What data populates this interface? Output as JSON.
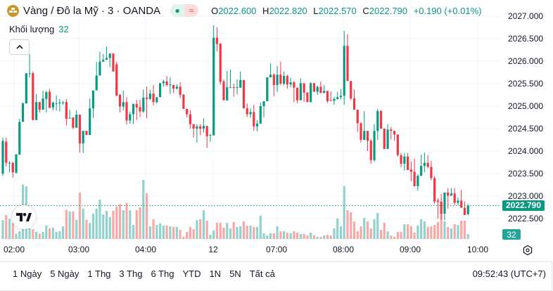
{
  "header": {
    "symbol_title": "Vàng / Đô la Mỹ · 3 · OANDA",
    "market_open_icon": "dot-icon",
    "status_icon": "approx-icon",
    "ohlc": {
      "o_label": "O",
      "o": "2022.600",
      "h_label": "H",
      "h": "2022.820",
      "l_label": "L",
      "l": "2022.570",
      "c_label": "C",
      "c": "2022.790",
      "change": "+0.190 (+0.01%)"
    }
  },
  "volume_legend": {
    "label": "Khối lượng",
    "value": "32"
  },
  "price_axis": {
    "labels": [
      "2027.000",
      "2026.500",
      "2026.000",
      "2025.500",
      "2025.000",
      "2024.500",
      "2024.000",
      "2023.500",
      "2023.000",
      "2022.500"
    ],
    "current_price": "2022.790",
    "current_volume": "32"
  },
  "time_axis": {
    "labels": [
      "02:00",
      "03:00",
      "04:00",
      "12",
      "07:00",
      "08:00",
      "09:00",
      "10:00"
    ]
  },
  "colors": {
    "up": "#089981",
    "down": "#f23645",
    "up_volume": "#92d2cc",
    "down_volume": "#f7a9a7",
    "price_tag": "#089981"
  },
  "bottom_bar": {
    "periods": [
      "1 Ngày",
      "5 Ngày",
      "1 Thg",
      "3 Thg",
      "6 Thg",
      "YTD",
      "1N",
      "5N",
      "Tất cả"
    ],
    "clock": "09:52:43 (UTC+7)"
  },
  "chart_data": {
    "type": "candlestick",
    "interval": "3m",
    "ylim": [
      2022.1,
      2027.3
    ],
    "grid": true,
    "ohlc": [
      [
        2023.5,
        2024.3,
        2023.45,
        2024.23
      ],
      [
        2024.21,
        2024.3,
        2023.66,
        2023.74
      ],
      [
        2023.74,
        2023.78,
        2023.53,
        2023.74
      ],
      [
        2023.74,
        2023.76,
        2023.41,
        2023.53
      ],
      [
        2023.52,
        2023.93,
        2023.5,
        2023.93
      ],
      [
        2023.92,
        2024.72,
        2023.92,
        2024.65
      ],
      [
        2024.65,
        2025.07,
        2024.65,
        2025.07
      ],
      [
        2025.06,
        2025.73,
        2025.06,
        2025.73
      ],
      [
        2025.73,
        2026.16,
        2025.64,
        2025.73
      ],
      [
        2025.73,
        2025.77,
        2024.69,
        2024.69
      ],
      [
        2024.69,
        2025.27,
        2024.69,
        2025.09
      ],
      [
        2025.09,
        2025.09,
        2024.86,
        2024.92
      ],
      [
        2024.92,
        2025.34,
        2024.92,
        2025.17
      ],
      [
        2025.16,
        2025.34,
        2024.86,
        2025.31
      ],
      [
        2025.32,
        2025.38,
        2024.96,
        2024.96
      ],
      [
        2024.97,
        2025.1,
        2024.91,
        2025.08
      ],
      [
        2025.06,
        2025.24,
        2024.9,
        2025.06
      ],
      [
        2025.06,
        2025.16,
        2024.88,
        2025.08
      ],
      [
        2025.08,
        2025.12,
        2025.03,
        2025.08
      ],
      [
        2025.09,
        2025.16,
        2024.57,
        2024.72
      ],
      [
        2024.73,
        2024.92,
        2024.73,
        2024.74
      ],
      [
        2024.75,
        2024.75,
        2024.49,
        2024.52
      ],
      [
        2024.52,
        2024.91,
        2024.52,
        2024.81
      ],
      [
        2024.81,
        2024.81,
        2023.97,
        2024.17
      ],
      [
        2024.17,
        2024.45,
        2023.96,
        2024.45
      ],
      [
        2024.45,
        2024.45,
        2024.36,
        2024.36
      ],
      [
        2024.36,
        2025.17,
        2024.36,
        2024.95
      ],
      [
        2024.95,
        2025.35,
        2024.74,
        2025.35
      ],
      [
        2025.35,
        2025.98,
        2025.35,
        2025.68
      ],
      [
        2025.68,
        2026.21,
        2025.68,
        2025.99
      ],
      [
        2025.99,
        2026.16,
        2025.99,
        2026.03
      ],
      [
        2026.03,
        2026.32,
        2026.03,
        2026.07
      ],
      [
        2026.07,
        2026.17,
        2025.87,
        2026.17
      ],
      [
        2026.17,
        2026.17,
        2025.77,
        2025.77
      ],
      [
        2025.93,
        2025.99,
        2025.23,
        2025.23
      ],
      [
        2025.25,
        2025.27,
        2024.86,
        2024.99
      ],
      [
        2024.99,
        2025.35,
        2024.91,
        2025.09
      ],
      [
        2025.09,
        2025.2,
        2024.59,
        2024.68
      ],
      [
        2024.68,
        2024.88,
        2024.61,
        2024.82
      ],
      [
        2024.82,
        2025.05,
        2024.6,
        2025.05
      ],
      [
        2025.05,
        2025.14,
        2024.69,
        2024.97
      ],
      [
        2024.98,
        2025.14,
        2024.76,
        2024.88
      ],
      [
        2024.88,
        2025.37,
        2024.85,
        2025.19
      ],
      [
        2025.19,
        2025.43,
        2024.73,
        2025.16
      ],
      [
        2025.16,
        2025.37,
        2025.14,
        2025.28
      ],
      [
        2025.28,
        2025.47,
        2025.02,
        2025.09
      ],
      [
        2025.09,
        2025.2,
        2025.06,
        2025.2
      ],
      [
        2025.2,
        2025.51,
        2025.2,
        2025.51
      ],
      [
        2025.51,
        2025.59,
        2025.43,
        2025.55
      ],
      [
        2025.55,
        2025.67,
        2025.44,
        2025.47
      ],
      [
        2025.48,
        2025.64,
        2025.27,
        2025.48
      ],
      [
        2025.47,
        2025.47,
        2025.29,
        2025.39
      ],
      [
        2025.39,
        2025.49,
        2025.37,
        2025.43
      ],
      [
        2025.43,
        2025.53,
        2025.18,
        2025.25
      ],
      [
        2025.26,
        2025.26,
        2024.94,
        2024.94
      ],
      [
        2024.94,
        2024.94,
        2024.75,
        2024.82
      ],
      [
        2024.82,
        2024.91,
        2024.5,
        2024.6
      ],
      [
        2024.6,
        2024.6,
        2024.3,
        2024.5
      ],
      [
        2024.5,
        2024.6,
        2024.19,
        2024.55
      ],
      [
        2024.55,
        2024.6,
        2024.35,
        2024.5
      ],
      [
        2024.5,
        2024.73,
        2024.41,
        2024.56
      ],
      [
        2024.56,
        2024.56,
        2024.07,
        2024.33
      ],
      [
        2024.35,
        2024.38,
        2024.21,
        2024.36
      ],
      [
        2024.35,
        2026.8,
        2024.35,
        2026.52
      ],
      [
        2026.52,
        2026.75,
        2026.22,
        2026.38
      ],
      [
        2026.39,
        2026.39,
        2025.48,
        2025.54
      ],
      [
        2025.55,
        2025.59,
        2025.13,
        2025.13
      ],
      [
        2025.13,
        2025.78,
        2025.13,
        2025.42
      ],
      [
        2025.42,
        2025.81,
        2025.42,
        2025.42
      ],
      [
        2025.42,
        2025.5,
        2025.21,
        2025.41
      ],
      [
        2025.41,
        2025.59,
        2025.26,
        2025.42
      ],
      [
        2025.41,
        2025.77,
        2025.41,
        2025.58
      ],
      [
        2025.58,
        2025.58,
        2024.95,
        2024.95
      ],
      [
        2024.95,
        2025.06,
        2024.76,
        2024.82
      ],
      [
        2024.82,
        2024.95,
        2024.74,
        2024.87
      ],
      [
        2024.87,
        2025.03,
        2024.45,
        2024.55
      ],
      [
        2024.55,
        2024.69,
        2024.44,
        2024.61
      ],
      [
        2024.61,
        2025.08,
        2024.61,
        2025.0
      ],
      [
        2025.0,
        2025.11,
        2024.75,
        2025.11
      ],
      [
        2025.11,
        2025.64,
        2025.11,
        2025.64
      ],
      [
        2025.64,
        2025.95,
        2025.64,
        2025.7
      ],
      [
        2025.7,
        2025.73,
        2025.22,
        2025.47
      ],
      [
        2025.47,
        2025.89,
        2025.32,
        2025.7
      ],
      [
        2025.7,
        2025.99,
        2025.47,
        2025.5
      ],
      [
        2025.5,
        2025.77,
        2025.46,
        2025.67
      ],
      [
        2025.67,
        2025.7,
        2025.39,
        2025.48
      ],
      [
        2025.48,
        2025.63,
        2025.42,
        2025.53
      ],
      [
        2025.53,
        2025.56,
        2025.09,
        2025.41
      ],
      [
        2025.41,
        2025.41,
        2025.06,
        2025.13
      ],
      [
        2025.13,
        2025.62,
        2025.13,
        2025.51
      ],
      [
        2025.51,
        2025.51,
        2025.09,
        2025.3
      ],
      [
        2025.3,
        2025.32,
        2025.09,
        2025.09
      ],
      [
        2025.09,
        2025.53,
        2025.09,
        2025.51
      ],
      [
        2025.51,
        2025.51,
        2025.32,
        2025.32
      ],
      [
        2025.32,
        2025.46,
        2025.25,
        2025.43
      ],
      [
        2025.43,
        2025.55,
        2025.29,
        2025.29
      ],
      [
        2025.29,
        2025.47,
        2025.29,
        2025.34
      ],
      [
        2025.34,
        2025.34,
        2025.07,
        2025.11
      ],
      [
        2025.13,
        2025.33,
        2025.11,
        2025.12
      ],
      [
        2025.12,
        2025.2,
        2025.03,
        2025.16
      ],
      [
        2025.16,
        2025.32,
        2025.14,
        2025.2
      ],
      [
        2025.2,
        2025.38,
        2025.15,
        2025.23
      ],
      [
        2025.23,
        2026.67,
        2025.03,
        2026.34
      ],
      [
        2026.34,
        2026.6,
        2025.56,
        2025.56
      ],
      [
        2025.56,
        2025.56,
        2025.13,
        2025.17
      ],
      [
        2025.17,
        2025.37,
        2024.92,
        2024.92
      ],
      [
        2024.92,
        2024.92,
        2024.43,
        2024.62
      ],
      [
        2024.62,
        2024.65,
        2024.19,
        2024.25
      ],
      [
        2024.25,
        2024.89,
        2024.25,
        2024.45
      ],
      [
        2024.45,
        2024.45,
        2024.0,
        2024.23
      ],
      [
        2024.23,
        2024.27,
        2023.72,
        2023.8
      ],
      [
        2023.8,
        2024.6,
        2023.77,
        2024.45
      ],
      [
        2024.45,
        2024.94,
        2024.25,
        2024.89
      ],
      [
        2024.89,
        2024.91,
        2024.5,
        2024.5
      ],
      [
        2024.5,
        2024.5,
        2024.05,
        2024.05
      ],
      [
        2024.05,
        2024.6,
        2024.05,
        2024.48
      ],
      [
        2024.48,
        2024.54,
        2024.26,
        2024.45
      ],
      [
        2024.45,
        2024.45,
        2024.23,
        2024.37
      ],
      [
        2024.37,
        2024.37,
        2023.88,
        2023.91
      ],
      [
        2023.91,
        2023.96,
        2023.64,
        2023.72
      ],
      [
        2023.72,
        2023.96,
        2023.57,
        2023.88
      ],
      [
        2023.88,
        2023.96,
        2023.58,
        2023.58
      ],
      [
        2023.59,
        2023.77,
        2023.33,
        2023.54
      ],
      [
        2023.54,
        2023.83,
        2023.22,
        2023.22
      ],
      [
        2023.22,
        2023.49,
        2023.12,
        2023.45
      ],
      [
        2023.45,
        2023.92,
        2023.45,
        2023.67
      ],
      [
        2023.67,
        2023.97,
        2023.53,
        2023.74
      ],
      [
        2023.74,
        2023.91,
        2023.62,
        2023.65
      ],
      [
        2023.65,
        2023.78,
        2023.35,
        2023.4
      ],
      [
        2023.4,
        2023.45,
        2022.83,
        2022.88
      ],
      [
        2022.9,
        2022.95,
        2022.5,
        2022.87
      ],
      [
        2022.88,
        2023.05,
        2022.48,
        2022.61
      ],
      [
        2022.61,
        2023.08,
        2022.47,
        2023.08
      ],
      [
        2023.08,
        2023.18,
        2022.72,
        2023.01
      ],
      [
        2023.01,
        2023.18,
        2023.01,
        2023.06
      ],
      [
        2023.06,
        2023.18,
        2022.8,
        2022.85
      ],
      [
        2022.85,
        2022.97,
        2022.8,
        2022.9
      ],
      [
        2022.9,
        2023.14,
        2022.74,
        2022.74
      ],
      [
        2022.74,
        2022.88,
        2022.58,
        2022.58
      ],
      [
        2022.6,
        2022.82,
        2022.57,
        2022.79
      ]
    ],
    "volume": [
      122,
      155,
      130,
      104,
      34,
      50,
      354,
      343,
      69,
      64,
      46,
      34,
      46,
      88,
      70,
      73,
      46,
      50,
      82,
      189,
      180,
      180,
      125,
      302,
      198,
      125,
      104,
      165,
      198,
      256,
      160,
      183,
      143,
      183,
      210,
      226,
      187,
      233,
      187,
      91,
      187,
      206,
      384,
      297,
      82,
      128,
      91,
      101,
      87,
      87,
      82,
      78,
      78,
      59,
      14,
      46,
      78,
      64,
      123,
      128,
      187,
      119,
      27,
      55,
      105,
      105,
      73,
      105,
      69,
      110,
      78,
      82,
      114,
      87,
      87,
      78,
      78,
      151,
      37,
      23,
      37,
      37,
      82,
      50,
      50,
      41,
      37,
      50,
      41,
      32,
      32,
      23,
      41,
      23,
      14,
      14,
      23,
      27,
      23,
      69,
      133,
      82,
      343,
      187,
      174,
      114,
      50,
      82,
      137,
      114,
      69,
      128,
      169,
      59,
      105,
      50,
      23,
      14,
      46,
      46,
      96,
      96,
      82,
      41,
      87,
      128,
      114,
      78,
      82,
      91,
      110,
      171,
      114,
      78,
      69,
      96,
      91,
      119,
      119,
      32
    ]
  }
}
